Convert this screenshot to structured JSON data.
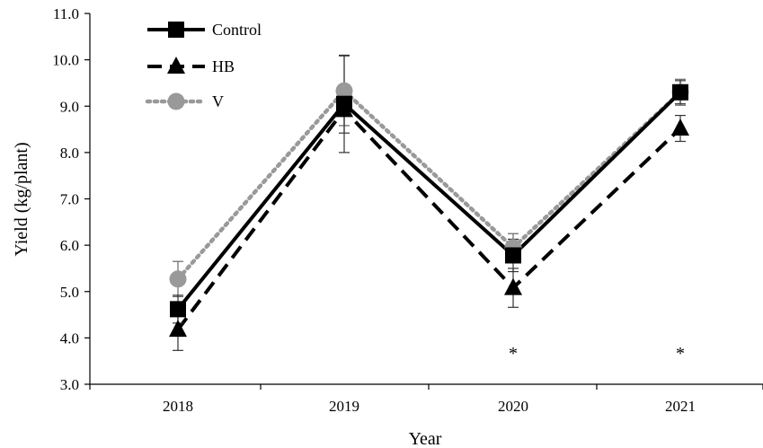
{
  "chart_data": {
    "type": "line",
    "xlabel": "Year",
    "ylabel": "Yield (kg/plant)",
    "categories": [
      "2018",
      "2019",
      "2020",
      "2021"
    ],
    "ylim": [
      3.0,
      11.0
    ],
    "yticks": [
      "3.0",
      "4.0",
      "5.0",
      "6.0",
      "7.0",
      "8.0",
      "9.0",
      "10.0",
      "11.0"
    ],
    "legend_position": "top-left",
    "grid": false,
    "series": [
      {
        "name": "Control",
        "line_style": "solid",
        "marker": "square",
        "color": "#000000",
        "values": [
          4.62,
          9.05,
          5.78,
          9.3
        ],
        "error": [
          0.3,
          1.05,
          0.35,
          0.25
        ]
      },
      {
        "name": "HB",
        "line_style": "dashed",
        "marker": "triangle",
        "color": "#000000",
        "values": [
          4.18,
          8.92,
          5.08,
          8.52
        ],
        "error": [
          0.45,
          0.5,
          0.42,
          0.28
        ]
      },
      {
        "name": "V",
        "line_style": "dotted",
        "marker": "circle",
        "color": "#999999",
        "values": [
          5.27,
          9.33,
          5.95,
          9.3
        ],
        "error": [
          0.38,
          0.75,
          0.3,
          0.28
        ]
      }
    ],
    "annotations": [
      {
        "category": "2020",
        "text": "*"
      },
      {
        "category": "2021",
        "text": "*"
      }
    ]
  }
}
